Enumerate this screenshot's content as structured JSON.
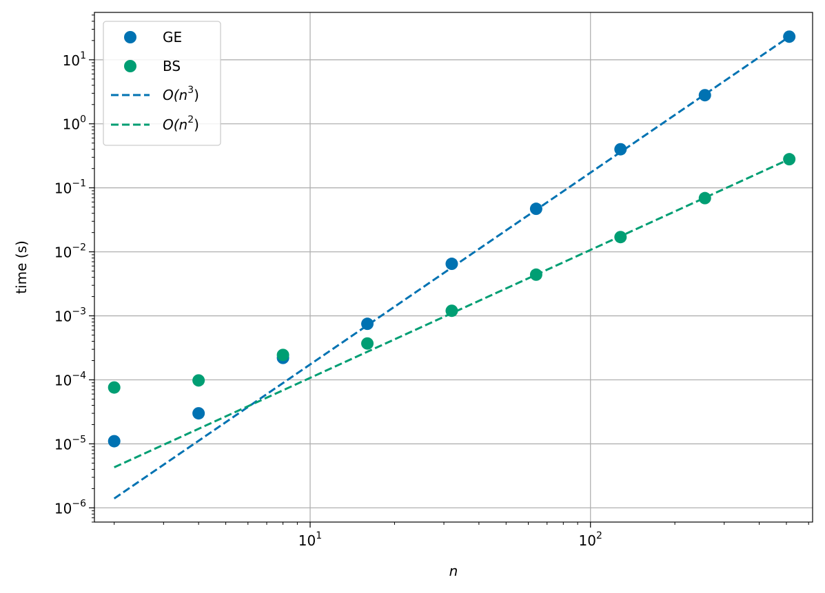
{
  "chart_data": {
    "type": "scatter",
    "xlabel": "n",
    "ylabel": "time (s)",
    "xscale": "log",
    "yscale": "log",
    "xlim": [
      1.7,
      620
    ],
    "ylim": [
      6e-07,
      55
    ],
    "grid": true,
    "legend_position": "top-left",
    "x_ticks": [
      {
        "base": "10",
        "exp": "1",
        "value": 10
      },
      {
        "base": "10",
        "exp": "2",
        "value": 100
      }
    ],
    "y_ticks": [
      {
        "base": "10",
        "exp": "−6",
        "value": 1e-06
      },
      {
        "base": "10",
        "exp": "−5",
        "value": 1e-05
      },
      {
        "base": "10",
        "exp": "−4",
        "value": 0.0001
      },
      {
        "base": "10",
        "exp": "−3",
        "value": 0.001
      },
      {
        "base": "10",
        "exp": "−2",
        "value": 0.01
      },
      {
        "base": "10",
        "exp": "−1",
        "value": 0.1
      },
      {
        "base": "10",
        "exp": "0",
        "value": 1
      },
      {
        "base": "10",
        "exp": "1",
        "value": 10
      }
    ],
    "series": [
      {
        "name": "GE",
        "kind": "scatter",
        "color": "#0072B2",
        "x": [
          2,
          4,
          8,
          16,
          32,
          64,
          128,
          256,
          512
        ],
        "y": [
          1.1e-05,
          3e-05,
          0.00022,
          0.00075,
          0.0065,
          0.047,
          0.4,
          2.8,
          23
        ]
      },
      {
        "name": "BS",
        "kind": "scatter",
        "color": "#009E73",
        "x": [
          2,
          4,
          8,
          16,
          32,
          64,
          128,
          256,
          512
        ],
        "y": [
          7.6e-05,
          9.8e-05,
          0.000245,
          0.00037,
          0.0012,
          0.0044,
          0.017,
          0.069,
          0.28
        ]
      },
      {
        "name": "O(n3)",
        "label_main": "O(n",
        "label_exp": "3",
        "label_close": ")",
        "kind": "line",
        "color": "#0072B2",
        "x": [
          2,
          512
        ],
        "y": [
          1.4e-06,
          23
        ]
      },
      {
        "name": "O(n2)",
        "label_main": "O(n",
        "label_exp": "2",
        "label_close": ")",
        "kind": "line",
        "color": "#009E73",
        "x": [
          2,
          512
        ],
        "y": [
          4.3e-06,
          0.28
        ]
      }
    ]
  }
}
